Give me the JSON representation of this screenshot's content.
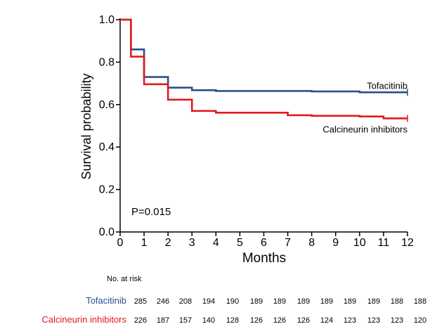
{
  "colors": {
    "tofacitinib": "#2c4f8f",
    "calcineurin": "#e31a1c",
    "axis": "#000000"
  },
  "chart_data": {
    "type": "line",
    "subtype": "kaplan-meier",
    "xlabel": "Months",
    "ylabel": "Survival probability",
    "xlim": [
      0,
      12
    ],
    "ylim": [
      0,
      1.0
    ],
    "x_ticks": [
      "0",
      "1",
      "2",
      "3",
      "4",
      "5",
      "6",
      "7",
      "8",
      "9",
      "10",
      "11",
      "12"
    ],
    "y_ticks": [
      {
        "value": 0.0,
        "label": "0.0"
      },
      {
        "value": 0.2,
        "label": "0.2"
      },
      {
        "value": 0.4,
        "label": "0.4"
      },
      {
        "value": 0.6,
        "label": "0.6"
      },
      {
        "value": 0.8,
        "label": "0.8"
      },
      {
        "value": 1.0,
        "label": "1.0"
      }
    ],
    "annotation": "P=0.015",
    "series": [
      {
        "name": "Tofacitinib",
        "color": "#2c4f8f",
        "steps": [
          [
            0,
            1.0
          ],
          [
            0.45,
            0.86
          ],
          [
            1,
            0.73
          ],
          [
            2,
            0.68
          ],
          [
            3,
            0.668
          ],
          [
            4,
            0.664
          ],
          [
            8,
            0.662
          ],
          [
            10,
            0.658
          ],
          [
            12,
            0.658
          ]
        ]
      },
      {
        "name": "Calcineurin inhibitors",
        "color": "#e31a1c",
        "steps": [
          [
            0,
            1.0
          ],
          [
            0.45,
            0.826
          ],
          [
            1,
            0.696
          ],
          [
            2,
            0.623
          ],
          [
            3,
            0.57
          ],
          [
            4,
            0.562
          ],
          [
            7,
            0.55
          ],
          [
            8,
            0.547
          ],
          [
            10,
            0.544
          ],
          [
            11,
            0.535
          ],
          [
            12,
            0.535
          ]
        ]
      }
    ],
    "risk_table": {
      "title": "No. at risk",
      "rows": [
        {
          "label": "Tofacitinib",
          "color": "#2c4f8f",
          "values": [
            "285",
            "246",
            "208",
            "194",
            "190",
            "189",
            "189",
            "189",
            "189",
            "189",
            "189",
            "188",
            "188"
          ]
        },
        {
          "label": "Calcineurin inhibitors",
          "color": "#e31a1c",
          "values": [
            "226",
            "187",
            "157",
            "140",
            "128",
            "126",
            "126",
            "126",
            "124",
            "123",
            "123",
            "123",
            "120"
          ]
        }
      ]
    }
  }
}
